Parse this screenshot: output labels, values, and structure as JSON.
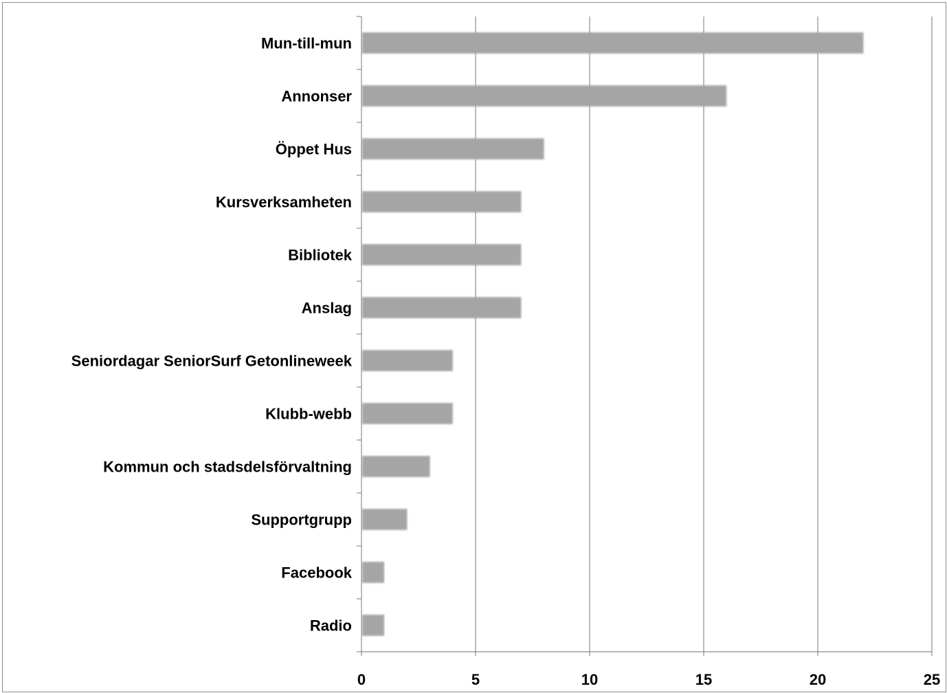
{
  "chart_data": {
    "type": "bar",
    "orientation": "horizontal",
    "categories": [
      "Mun-till-mun",
      "Annonser",
      "Öppet Hus",
      "Kursverksamheten",
      "Bibliotek",
      "Anslag",
      "Seniordagar SeniorSurf Getonlineweek",
      "Klubb-webb",
      "Kommun och stadsdelsförvaltning",
      "Supportgrupp",
      "Facebook",
      "Radio"
    ],
    "values": [
      22,
      16,
      8,
      7,
      7,
      7,
      4,
      4,
      3,
      2,
      1,
      1
    ],
    "xlim": [
      0,
      25
    ],
    "xticks": [
      "0",
      "5",
      "10",
      "15",
      "20",
      "25"
    ],
    "title": "",
    "xlabel": "",
    "ylabel": "",
    "grid": "vertical",
    "legend": "none",
    "colors": {
      "bar": "#a5a5a5",
      "gridline": "#8c8c8c",
      "axis": "#8c8c8c"
    }
  }
}
